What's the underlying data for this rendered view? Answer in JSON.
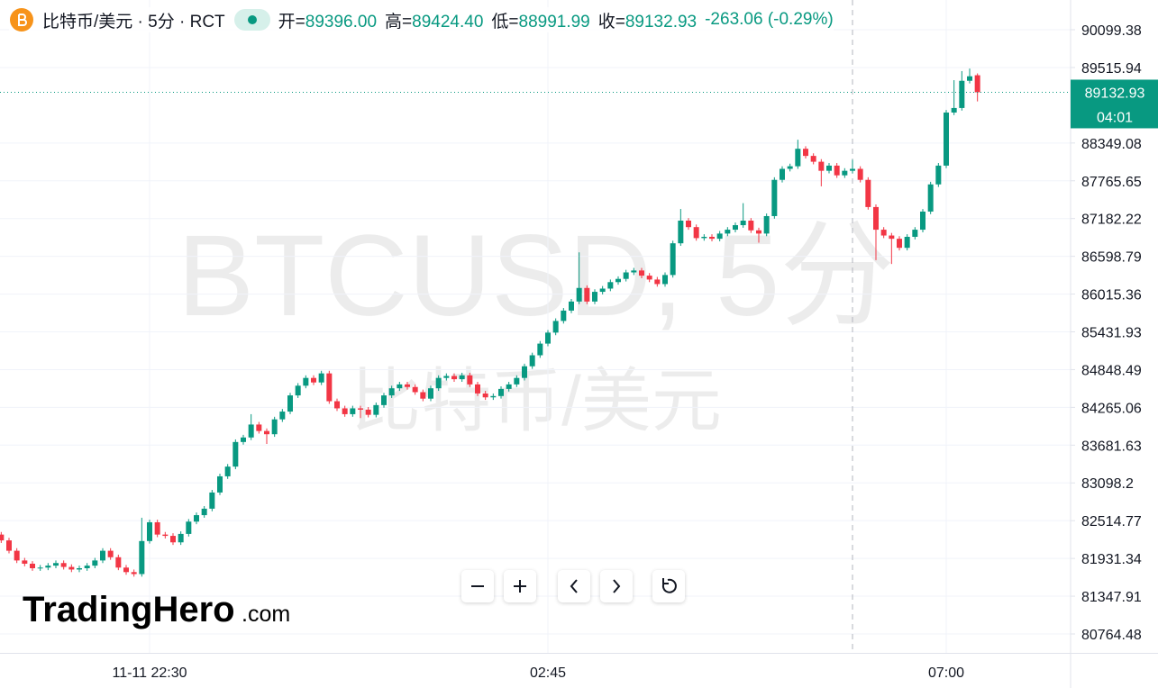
{
  "header": {
    "symbol": "比特币/美元 · 5分 · RCT",
    "fields": [
      {
        "label": "开=",
        "value": "89396.00"
      },
      {
        "label": "高=",
        "value": "89424.40"
      },
      {
        "label": "低=",
        "value": "88991.99"
      },
      {
        "label": "收=",
        "value": "89132.93"
      }
    ],
    "change": "-263.06 (-0.29%)"
  },
  "watermark": {
    "line1": "BTCUSD, 5分",
    "line2": "比特币/美元"
  },
  "logo": {
    "name": "TradingHero",
    "suffix": ".com"
  },
  "chart_data": {
    "type": "candlestick",
    "up_color": "#089981",
    "down_color": "#f23645",
    "grid": true,
    "countdown": "04:01",
    "categories": [
      null,
      null,
      null,
      null,
      null,
      null,
      null,
      null,
      null,
      null,
      null,
      null,
      null,
      null,
      null,
      null,
      null,
      null,
      null,
      "11-11 22:30",
      null,
      null,
      null,
      null,
      null,
      null,
      null,
      null,
      null,
      null,
      null,
      null,
      null,
      null,
      null,
      null,
      null,
      null,
      null,
      null,
      null,
      null,
      null,
      null,
      null,
      null,
      null,
      null,
      null,
      null,
      null,
      null,
      null,
      null,
      null,
      null,
      null,
      null,
      null,
      null,
      null,
      null,
      null,
      null,
      null,
      null,
      null,
      null,
      null,
      null,
      "02:45",
      null,
      null,
      null,
      null,
      null,
      null,
      null,
      null,
      null,
      null,
      null,
      null,
      null,
      null,
      null,
      null,
      null,
      null,
      null,
      null,
      null,
      null,
      null,
      null,
      null,
      null,
      null,
      null,
      null,
      null,
      null,
      null,
      null,
      null,
      null,
      null,
      null,
      null,
      null,
      null,
      null,
      null,
      null,
      null,
      null,
      null,
      null,
      null,
      null,
      null,
      "07:00",
      null,
      null,
      null,
      null
    ],
    "open": [
      82300,
      82210,
      82050,
      81900,
      81850,
      81780,
      81790,
      81820,
      81860,
      81800,
      81760,
      81780,
      81820,
      81900,
      82050,
      81950,
      81790,
      81720,
      81690,
      82200,
      82490,
      82300,
      82280,
      82180,
      82310,
      82500,
      82600,
      82700,
      82950,
      83200,
      83350,
      83730,
      83800,
      84000,
      83900,
      83850,
      84080,
      84200,
      84450,
      84600,
      84720,
      84650,
      84790,
      84360,
      84250,
      84160,
      84250,
      84230,
      84150,
      84300,
      84450,
      84560,
      84620,
      84580,
      84500,
      84400,
      84560,
      84720,
      84750,
      84700,
      84760,
      84620,
      84480,
      84420,
      84440,
      84550,
      84620,
      84720,
      84900,
      85070,
      85250,
      85420,
      85600,
      85760,
      85900,
      86110,
      85900,
      86050,
      86100,
      86200,
      86250,
      86350,
      86380,
      86300,
      86240,
      86170,
      86310,
      86800,
      87150,
      87050,
      86880,
      86900,
      86870,
      86950,
      87010,
      87080,
      87150,
      87000,
      86950,
      87220,
      87780,
      87950,
      87990,
      88260,
      88150,
      88060,
      87920,
      88000,
      87850,
      87920,
      87950,
      87780,
      87360,
      87010,
      86920,
      86870,
      86730,
      86900,
      87010,
      87290,
      87710,
      88000,
      88820,
      88890,
      89310,
      89396.0
    ],
    "high": [
      82340,
      82250,
      82090,
      81940,
      81890,
      81830,
      81860,
      81900,
      81900,
      81840,
      81820,
      81860,
      81940,
      82090,
      82090,
      81990,
      81830,
      81760,
      82560,
      82530,
      82530,
      82340,
      82320,
      82350,
      82540,
      82640,
      82740,
      82990,
      83240,
      83390,
      83770,
      83840,
      84160,
      84040,
      83940,
      84120,
      84240,
      84490,
      84640,
      84760,
      84760,
      84830,
      84830,
      84400,
      84290,
      84290,
      84290,
      84270,
      84340,
      84490,
      84600,
      84660,
      84660,
      84620,
      84540,
      84600,
      84760,
      84790,
      84790,
      84800,
      84800,
      84660,
      84520,
      84480,
      84590,
      84660,
      84760,
      84940,
      85110,
      85290,
      85460,
      85640,
      85800,
      85940,
      86660,
      86150,
      86090,
      86140,
      86240,
      86290,
      86390,
      86420,
      86420,
      86340,
      86280,
      86350,
      86840,
      87330,
      87190,
      87090,
      86940,
      86940,
      86990,
      87050,
      87120,
      87420,
      87190,
      87040,
      87260,
      87820,
      87990,
      88030,
      88400,
      88300,
      88190,
      88100,
      88040,
      88040,
      87960,
      88090,
      87990,
      87820,
      87400,
      87050,
      86960,
      86910,
      86940,
      87050,
      87330,
      87750,
      88040,
      88860,
      89320,
      89460,
      89500,
      89424.4
    ],
    "low": [
      82170,
      82010,
      81860,
      81810,
      81740,
      81740,
      81750,
      81780,
      81760,
      81720,
      81720,
      81740,
      81780,
      81860,
      81910,
      81750,
      81680,
      81650,
      81650,
      82160,
      82260,
      82240,
      82140,
      82140,
      82270,
      82460,
      82560,
      82660,
      82910,
      83160,
      83310,
      83690,
      83760,
      83860,
      83700,
      83810,
      84040,
      84160,
      84410,
      84560,
      84610,
      84610,
      84320,
      84210,
      84120,
      84120,
      84100,
      84110,
      84110,
      84260,
      84410,
      84520,
      84540,
      84460,
      84360,
      84360,
      84520,
      84680,
      84660,
      84660,
      84580,
      84440,
      84380,
      84380,
      84400,
      84510,
      84580,
      84680,
      84860,
      85030,
      85210,
      85380,
      85560,
      85720,
      85860,
      85860,
      85860,
      86010,
      86060,
      86160,
      86210,
      86310,
      86260,
      86200,
      86130,
      86130,
      86270,
      86760,
      87010,
      86840,
      86840,
      86830,
      86830,
      86910,
      86970,
      87040,
      86960,
      86810,
      86910,
      87180,
      87740,
      87910,
      87950,
      88110,
      88020,
      87680,
      87880,
      87810,
      87810,
      87880,
      87740,
      87320,
      86540,
      86880,
      86480,
      86690,
      86690,
      86860,
      86970,
      87250,
      87670,
      87960,
      88780,
      88850,
      89270,
      88991.99
    ],
    "close": [
      82210,
      82050,
      81900,
      81850,
      81780,
      81790,
      81820,
      81860,
      81800,
      81760,
      81780,
      81820,
      81900,
      82050,
      81950,
      81790,
      81720,
      81690,
      82200,
      82490,
      82300,
      82280,
      82180,
      82310,
      82500,
      82600,
      82700,
      82950,
      83200,
      83350,
      83730,
      83800,
      84000,
      83900,
      83850,
      84080,
      84200,
      84450,
      84600,
      84720,
      84650,
      84790,
      84360,
      84250,
      84160,
      84250,
      84230,
      84150,
      84300,
      84450,
      84560,
      84620,
      84580,
      84500,
      84400,
      84560,
      84720,
      84750,
      84700,
      84760,
      84620,
      84480,
      84420,
      84440,
      84550,
      84620,
      84720,
      84900,
      85070,
      85250,
      85420,
      85600,
      85760,
      85900,
      86110,
      85900,
      86050,
      86100,
      86200,
      86250,
      86350,
      86380,
      86300,
      86240,
      86170,
      86310,
      86800,
      87150,
      87050,
      86880,
      86900,
      86870,
      86950,
      87010,
      87080,
      87150,
      87000,
      86950,
      87220,
      87780,
      87950,
      87990,
      88260,
      88150,
      88060,
      87920,
      88000,
      87850,
      87920,
      87950,
      87780,
      87360,
      87010,
      86920,
      86870,
      86730,
      86900,
      87010,
      87290,
      87710,
      88000,
      88820,
      88890,
      89310,
      89380,
      89132.93
    ],
    "ylim": [
      80472.3,
      90558.5
    ],
    "yticks": [
      90099.38,
      89515.94,
      88349.08,
      87765.65,
      87182.22,
      86598.79,
      86015.36,
      85431.93,
      84848.49,
      84265.06,
      83681.63,
      83098.2,
      82514.77,
      81931.34,
      81347.91,
      80764.48
    ]
  }
}
